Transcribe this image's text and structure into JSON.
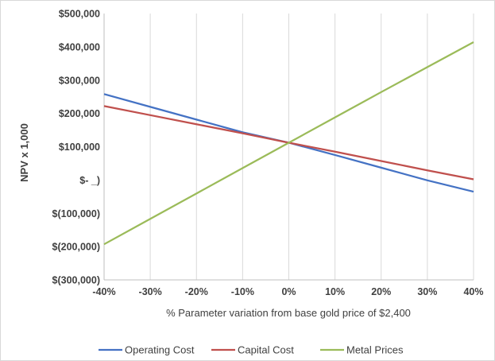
{
  "chart_data": {
    "type": "line",
    "xlabel": "% Parameter variation from base gold price of $2,400",
    "ylabel": "NPV x 1,000",
    "x": [
      -40,
      -30,
      -20,
      -10,
      0,
      10,
      20,
      30,
      40
    ],
    "x_tick_labels": [
      "-40%",
      "-30%",
      "-20%",
      "-10%",
      "0%",
      "10%",
      "20%",
      "30%",
      "40%"
    ],
    "xlim": [
      -40,
      40
    ],
    "ylim": [
      -300000,
      500000
    ],
    "y_ticks": [
      500000,
      400000,
      300000,
      200000,
      100000,
      0,
      -100000,
      -200000,
      -300000
    ],
    "y_tick_labels": [
      "$500,000",
      "$400,000",
      "$300,000",
      "$200,000",
      "$100,000",
      "$-  _)",
      "$(100,000)",
      "$(200,000)",
      "$(300,000)"
    ],
    "grid": "vertical",
    "legend_position": "bottom",
    "series": [
      {
        "name": "Operating Cost",
        "color": "#4472c4",
        "values": [
          258000,
          219750,
          181500,
          143250,
          112000,
          75000,
          37000,
          -1000,
          -35000
        ]
      },
      {
        "name": "Capital Cost",
        "color": "#c0504d",
        "values": [
          222000,
          194750,
          167500,
          140250,
          112000,
          85000,
          57000,
          29000,
          2000
        ]
      },
      {
        "name": "Metal Prices",
        "color": "#9bbb59",
        "values": [
          -193000,
          -116750,
          -40500,
          35750,
          112000,
          188000,
          264000,
          339000,
          414000
        ]
      }
    ]
  }
}
